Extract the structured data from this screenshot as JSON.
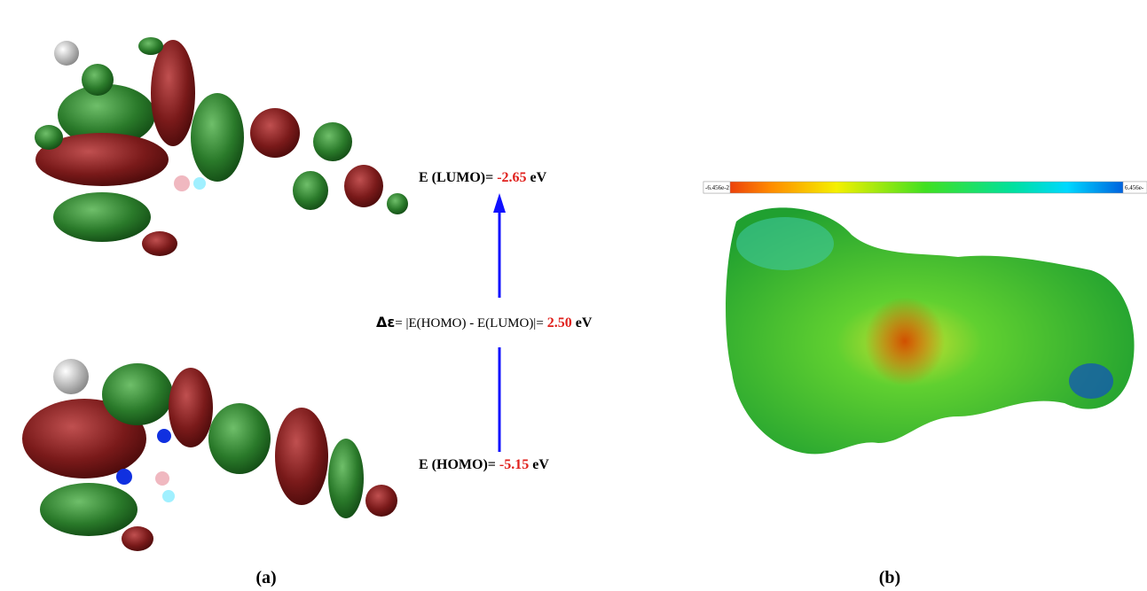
{
  "energies": {
    "lumo": {
      "label": "E (LUMO)=",
      "value": "-2.65",
      "unit": "eV"
    },
    "gap": {
      "symbol": "Δε",
      "label": "= |E(HOMO) - E(LUMO)|=",
      "value": "2.50",
      "unit": "eV"
    },
    "homo": {
      "label": "E (HOMO)=",
      "value": "-5.15",
      "unit": "eV"
    }
  },
  "panels": {
    "a": "(a)",
    "b": "(b)"
  },
  "colorbar": {
    "min": "-6.456e-2",
    "max": "6.456e-"
  }
}
